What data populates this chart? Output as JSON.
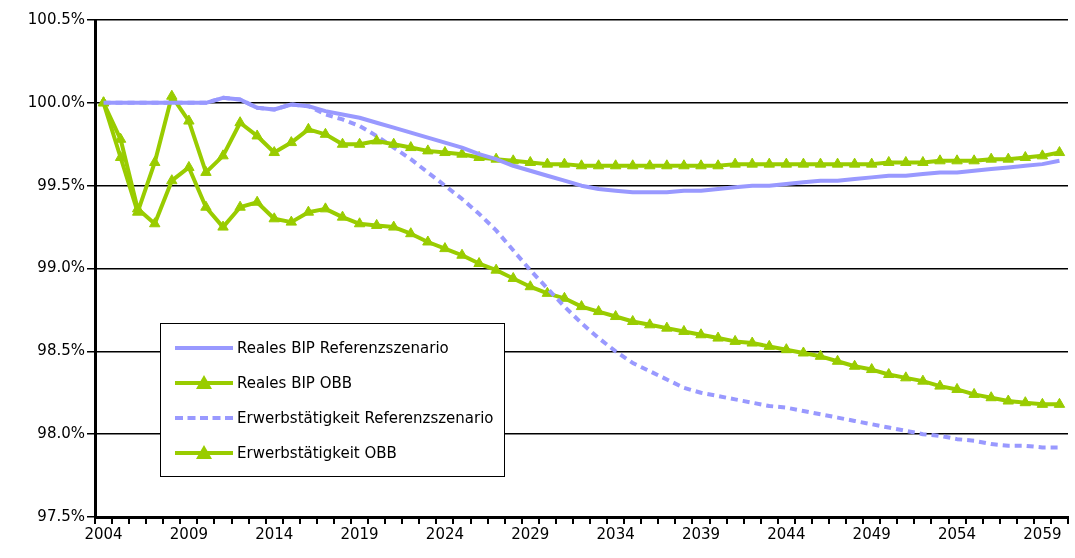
{
  "chart_data": {
    "type": "line",
    "categories": [
      "2004",
      null,
      null,
      null,
      null,
      "2009",
      null,
      null,
      null,
      null,
      "2014",
      null,
      null,
      null,
      null,
      "2019",
      null,
      null,
      null,
      null,
      "2024",
      null,
      null,
      null,
      null,
      "2029",
      null,
      null,
      null,
      null,
      "2034",
      null,
      null,
      null,
      null,
      "2039",
      null,
      null,
      null,
      null,
      "2044",
      null,
      null,
      null,
      null,
      "2049",
      null,
      null,
      null,
      null,
      "2054",
      null,
      null,
      null,
      null,
      "2059",
      null
    ],
    "ylim": [
      97.5,
      100.5
    ],
    "yticks": [
      {
        "value": 97.5,
        "label": "97.5%"
      },
      {
        "value": 98,
        "label": "98.0%"
      },
      {
        "value": 98.5,
        "label": "98.5%"
      },
      {
        "value": 99,
        "label": "99.0%"
      },
      {
        "value": 99.5,
        "label": "99.5%"
      },
      {
        "value": 100,
        "label": "100.0%"
      },
      {
        "value": 100.5,
        "label": "100.5%"
      }
    ],
    "grid": "y",
    "legend": "bottom left",
    "series": [
      {
        "name": "Reales BIP Referenzszenario",
        "color": "#9999ff",
        "line_style": "solid",
        "marker": "none",
        "values": [
          100,
          100,
          100,
          100,
          100,
          100,
          100,
          100.03,
          100.02,
          99.97,
          99.96,
          99.99,
          99.98,
          99.95,
          99.93,
          99.91,
          99.88,
          99.85,
          99.82,
          99.79,
          99.76,
          99.73,
          99.69,
          99.66,
          99.62,
          99.59,
          99.56,
          99.53,
          99.5,
          99.48,
          99.47,
          99.46,
          99.46,
          99.46,
          99.47,
          99.47,
          99.48,
          99.49,
          99.5,
          99.5,
          99.51,
          99.52,
          99.53,
          99.53,
          99.54,
          99.55,
          99.56,
          99.56,
          99.57,
          99.58,
          99.58,
          99.59,
          99.6,
          99.61,
          99.62,
          99.63,
          99.65
        ]
      },
      {
        "name": "Reales BIP OBB",
        "color": "#99cc00",
        "line_style": "solid",
        "marker": "triangle",
        "values": [
          100,
          99.67,
          99.34,
          99.64,
          100.04,
          99.89,
          99.58,
          99.68,
          99.88,
          99.8,
          99.7,
          99.76,
          99.84,
          99.81,
          99.75,
          99.75,
          99.77,
          99.75,
          99.73,
          99.71,
          99.7,
          99.69,
          99.67,
          99.66,
          99.65,
          99.64,
          99.63,
          99.63,
          99.62,
          99.62,
          99.62,
          99.62,
          99.62,
          99.62,
          99.62,
          99.62,
          99.62,
          99.63,
          99.63,
          99.63,
          99.63,
          99.63,
          99.63,
          99.63,
          99.63,
          99.63,
          99.64,
          99.64,
          99.64,
          99.65,
          99.65,
          99.65,
          99.66,
          99.66,
          99.67,
          99.68,
          99.7
        ]
      },
      {
        "name": "Erwerbstätigkeit Referenzszenario",
        "color": "#9999ff",
        "line_style": "dashed",
        "marker": "none",
        "values": [
          100,
          100,
          100,
          100,
          100,
          100,
          100,
          100.03,
          100.02,
          99.97,
          99.96,
          99.99,
          99.98,
          99.93,
          99.9,
          99.86,
          99.8,
          99.73,
          99.66,
          99.58,
          99.5,
          99.42,
          99.33,
          99.23,
          99.11,
          98.99,
          98.88,
          98.77,
          98.67,
          98.58,
          98.5,
          98.43,
          98.38,
          98.33,
          98.28,
          98.25,
          98.23,
          98.21,
          98.19,
          98.17,
          98.16,
          98.14,
          98.12,
          98.1,
          98.08,
          98.06,
          98.04,
          98.02,
          98,
          97.99,
          97.97,
          97.96,
          97.94,
          97.93,
          97.93,
          97.92,
          97.92
        ]
      },
      {
        "name": "Erwerbstätigkeit OBB",
        "color": "#99cc00",
        "line_style": "solid",
        "marker": "triangle",
        "values": [
          100,
          99.78,
          99.36,
          99.27,
          99.53,
          99.61,
          99.37,
          99.25,
          99.37,
          99.4,
          99.3,
          99.28,
          99.34,
          99.36,
          99.31,
          99.27,
          99.26,
          99.25,
          99.21,
          99.16,
          99.12,
          99.08,
          99.03,
          98.99,
          98.94,
          98.89,
          98.85,
          98.82,
          98.77,
          98.74,
          98.71,
          98.68,
          98.66,
          98.64,
          98.62,
          98.6,
          98.58,
          98.56,
          98.55,
          98.53,
          98.51,
          98.49,
          98.47,
          98.44,
          98.41,
          98.39,
          98.36,
          98.34,
          98.32,
          98.29,
          98.27,
          98.24,
          98.22,
          98.2,
          98.19,
          98.18,
          98.18
        ]
      }
    ]
  }
}
